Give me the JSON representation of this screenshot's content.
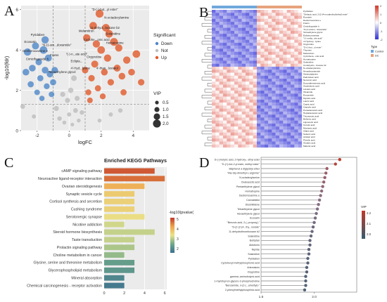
{
  "figure": {
    "panels": [
      {
        "letter": "A"
      },
      {
        "letter": "B"
      },
      {
        "letter": "C"
      },
      {
        "letter": "D"
      }
    ]
  },
  "colors": {
    "down": "#4f87c8",
    "not": "#bdbdbd",
    "up": "#e15a2b",
    "heat_high": "#d7301f",
    "heat_low": "#2b2bd6",
    "group_a": "#6fa8dc",
    "group_b": "#e6a37c",
    "lollipop_high": "#c0392b",
    "lollipop_low": "#355c6e"
  },
  "chart_data": [
    {
      "type": "scatter",
      "id": "volcano",
      "xlabel": "logFC",
      "ylabel": "-log10(fdr)",
      "xlim": [
        -3,
        5
      ],
      "ylim": [
        0,
        6.2
      ],
      "xticks": [
        -2,
        0,
        2,
        4
      ],
      "yticks": [
        0,
        2,
        4,
        6
      ],
      "grid": true,
      "threshold_lines": {
        "x": [
          -1,
          1
        ],
        "y": 1.3
      },
      "legend_significant": {
        "title": "Significant",
        "items": [
          "Down",
          "Not",
          "Up"
        ]
      },
      "legend_vip": {
        "title": "VIP",
        "items": [
          "0.5",
          "1.0",
          "1.5",
          "2.0"
        ]
      },
      "points": [
        {
          "x": -2.6,
          "y": 3.9,
          "vip": 1.8,
          "group": "Down"
        },
        {
          "x": -2.3,
          "y": 3.1,
          "vip": 1.6,
          "group": "Down"
        },
        {
          "x": -2.1,
          "y": 4.2,
          "vip": 1.7,
          "group": "Down"
        },
        {
          "x": -1.9,
          "y": 3.4,
          "vip": 1.5,
          "group": "Down"
        },
        {
          "x": -1.8,
          "y": 2.6,
          "vip": 1.4,
          "group": "Down"
        },
        {
          "x": -1.6,
          "y": 4.0,
          "vip": 1.9,
          "group": "Down"
        },
        {
          "x": -1.5,
          "y": 3.0,
          "vip": 1.6,
          "group": "Down"
        },
        {
          "x": -1.4,
          "y": 2.2,
          "vip": 1.3,
          "group": "Down"
        },
        {
          "x": -1.3,
          "y": 3.6,
          "vip": 1.7,
          "group": "Down"
        },
        {
          "x": -1.2,
          "y": 2.8,
          "vip": 1.5,
          "group": "Down"
        },
        {
          "x": -2.4,
          "y": 2.3,
          "vip": 1.4,
          "group": "Down"
        },
        {
          "x": -2.0,
          "y": 1.9,
          "vip": 1.2,
          "group": "Down"
        },
        {
          "x": -1.7,
          "y": 1.6,
          "vip": 1.1,
          "group": "Down"
        },
        {
          "x": -1.1,
          "y": 1.8,
          "vip": 1.2,
          "group": "Down"
        },
        {
          "x": -2.7,
          "y": 2.9,
          "vip": 1.6,
          "group": "Down"
        },
        {
          "x": -1.0,
          "y": 2.4,
          "vip": 1.4,
          "group": "Down"
        },
        {
          "x": -1.5,
          "y": 4.5,
          "vip": 1.8,
          "group": "Down"
        },
        {
          "x": -0.9,
          "y": 3.0,
          "vip": 1.5,
          "group": "Down"
        },
        {
          "x": -0.6,
          "y": 0.6,
          "vip": 0.8,
          "group": "Not"
        },
        {
          "x": -0.3,
          "y": 0.4,
          "vip": 0.6,
          "group": "Not"
        },
        {
          "x": 0.0,
          "y": 0.8,
          "vip": 0.7,
          "group": "Not"
        },
        {
          "x": 0.2,
          "y": 0.3,
          "vip": 0.5,
          "group": "Not"
        },
        {
          "x": 0.4,
          "y": 1.0,
          "vip": 0.9,
          "group": "Not"
        },
        {
          "x": -0.8,
          "y": 1.1,
          "vip": 1.0,
          "group": "Not"
        },
        {
          "x": 0.6,
          "y": 0.5,
          "vip": 0.6,
          "group": "Not"
        },
        {
          "x": -0.1,
          "y": 1.5,
          "vip": 1.0,
          "group": "Not"
        },
        {
          "x": 0.1,
          "y": 2.0,
          "vip": 1.1,
          "group": "Not"
        },
        {
          "x": -0.4,
          "y": 1.8,
          "vip": 1.0,
          "group": "Not"
        },
        {
          "x": 0.5,
          "y": 1.6,
          "vip": 1.0,
          "group": "Not"
        },
        {
          "x": 0.8,
          "y": 0.9,
          "vip": 0.8,
          "group": "Not"
        },
        {
          "x": -2.2,
          "y": 0.7,
          "vip": 0.7,
          "group": "Not"
        },
        {
          "x": 2.6,
          "y": 0.8,
          "vip": 0.7,
          "group": "Not"
        },
        {
          "x": 3.2,
          "y": 1.0,
          "vip": 0.8,
          "group": "Not"
        },
        {
          "x": 1.9,
          "y": 0.5,
          "vip": 0.6,
          "group": "Not"
        },
        {
          "x": -2.9,
          "y": 1.2,
          "vip": 0.9,
          "group": "Not"
        },
        {
          "x": 0.3,
          "y": 2.6,
          "vip": 1.2,
          "group": "Not"
        },
        {
          "x": 1.2,
          "y": 1.9,
          "vip": 1.3,
          "group": "Up"
        },
        {
          "x": 1.4,
          "y": 2.6,
          "vip": 1.5,
          "group": "Up"
        },
        {
          "x": 1.6,
          "y": 3.3,
          "vip": 1.7,
          "group": "Up"
        },
        {
          "x": 1.8,
          "y": 2.1,
          "vip": 1.4,
          "group": "Up"
        },
        {
          "x": 2.0,
          "y": 4.0,
          "vip": 1.9,
          "group": "Up"
        },
        {
          "x": 2.2,
          "y": 2.9,
          "vip": 1.6,
          "group": "Up"
        },
        {
          "x": 2.4,
          "y": 3.6,
          "vip": 1.8,
          "group": "Up"
        },
        {
          "x": 2.6,
          "y": 2.4,
          "vip": 1.5,
          "group": "Up"
        },
        {
          "x": 2.8,
          "y": 4.4,
          "vip": 2.0,
          "group": "Up"
        },
        {
          "x": 3.0,
          "y": 3.1,
          "vip": 1.7,
          "group": "Up"
        },
        {
          "x": 3.3,
          "y": 2.7,
          "vip": 1.6,
          "group": "Up"
        },
        {
          "x": 3.6,
          "y": 3.5,
          "vip": 1.8,
          "group": "Up"
        },
        {
          "x": 3.9,
          "y": 2.9,
          "vip": 1.6,
          "group": "Up"
        },
        {
          "x": 4.2,
          "y": 3.8,
          "vip": 1.9,
          "group": "Up"
        },
        {
          "x": 1.1,
          "y": 4.6,
          "vip": 1.8,
          "group": "Up"
        },
        {
          "x": 1.5,
          "y": 5.2,
          "vip": 1.9,
          "group": "Up"
        },
        {
          "x": 1.9,
          "y": 5.8,
          "vip": 2.0,
          "group": "Up"
        },
        {
          "x": 2.3,
          "y": 5.1,
          "vip": 1.9,
          "group": "Up"
        },
        {
          "x": 1.3,
          "y": 1.5,
          "vip": 1.2,
          "group": "Up"
        },
        {
          "x": 2.1,
          "y": 1.7,
          "vip": 1.3,
          "group": "Up"
        },
        {
          "x": 3.4,
          "y": 1.9,
          "vip": 1.4,
          "group": "Up"
        },
        {
          "x": 1.7,
          "y": 4.3,
          "vip": 1.8,
          "group": "Up"
        },
        {
          "x": 2.5,
          "y": 4.8,
          "vip": 1.9,
          "group": "Up"
        },
        {
          "x": 4.5,
          "y": 2.4,
          "vip": 1.5,
          "group": "Up"
        },
        {
          "x": 1.0,
          "y": 3.0,
          "vip": 1.5,
          "group": "Up"
        },
        {
          "x": 3.1,
          "y": 4.1,
          "vip": 1.8,
          "group": "Up"
        }
      ],
      "annotations": [
        {
          "text": "\"D-(-)-but...yl ester\"",
          "x": 1.4,
          "y": 5.95
        },
        {
          "text": "N-octadecylamine",
          "x": 2.2,
          "y": 5.55
        },
        {
          "text": "Melamitron",
          "x": 0.6,
          "y": 4.9
        },
        {
          "text": "11-dehyd...boxane b2",
          "x": 1.3,
          "y": 5.05
        },
        {
          "text": "Solanidine",
          "x": 2.3,
          "y": 4.75
        },
        {
          "text": "Cyclohe...onic acid",
          "x": 0.9,
          "y": 4.45
        },
        {
          "text": "Homatropine",
          "x": 2.3,
          "y": 4.3
        },
        {
          "text": "Pyridaben",
          "x": -2.4,
          "y": 4.7
        },
        {
          "text": "Ecosarin",
          "x": -2.8,
          "y": 4.35
        },
        {
          "text": "Desferrioxamine e",
          "x": -2.9,
          "y": 3.9
        },
        {
          "text": "\"N-(1-am...doxamide\"",
          "x": -1.7,
          "y": 4.2
        },
        {
          "text": "Frams",
          "x": -1.2,
          "y": 3.7
        },
        {
          "text": "Cimicifugoside h",
          "x": -2.7,
          "y": 3.5
        },
        {
          "text": "Tetraethylene glycol",
          "x": -1.3,
          "y": 2.85
        },
        {
          "text": "\"(-)-n...ate acid\"",
          "x": -0.2,
          "y": 3.75
        },
        {
          "text": "Eclipta...",
          "x": 0.1,
          "y": 3.4
        },
        {
          "text": "Oxyprotine",
          "x": 1.1,
          "y": 3.6
        },
        {
          "text": "4'-Hyd...lysine",
          "x": 0.1,
          "y": 3.05
        },
        {
          "text": "4'-than...lostatol",
          "x": 1.7,
          "y": 3.05
        }
      ]
    },
    {
      "type": "heatmap",
      "id": "heatmap",
      "color_scale": {
        "min": -2,
        "max": 2,
        "ticks": [
          "2",
          "1",
          "0",
          "-1",
          "-2"
        ]
      },
      "column_groups": [
        {
          "name": "",
          "count": 12
        },
        {
          "name": "",
          "count": 12
        }
      ],
      "legend_title": "Type",
      "legend_items": [
        "Control",
        "DC"
      ],
      "rows": [
        "Pyridaben",
        "\"Sebacic acid, 2-[2-(4-morpholinyl)ethyl] ester\"",
        "Ecosarin",
        "Desferrioxamine e",
        "Frams",
        "Cimicifugoside h",
        "\"N-(1-amino...doxamide\"",
        "Tetraethylene glycol",
        "Eclipta prostrata",
        "\"(-)-norlig...ate acid\"",
        "4'-Hydroxy...lysine",
        "Oxyprotine",
        "\"D-(-)-but...yl ester\"",
        "Thymine",
        "Melamitron",
        "Cyclohexa...onic acid",
        "Homatropine",
        "Solanidine",
        "11-dehydro...boxane b2",
        "N-octadecylamine",
        "Hexadecanamide",
        "Stearoylglycine",
        "Palmitoleic acid",
        "Nervonic acid",
        "Docosahexaenoic acid",
        "Arachidonic acid",
        "Linoleic acid",
        "Oleamide",
        "Erucamide",
        "Myristic acid",
        "Lauric acid",
        "Capric acid",
        "Caprylic acid",
        "Pentadecanoic acid",
        "Heptadecanoic acid",
        "Tricosanoic acid",
        "Behenic acid",
        "Lignoceric acid",
        "Cerotic acid",
        "Montanic acid",
        "Adipic acid",
        "Suberic acid",
        "Azelaic acid",
        "Pimelic acid",
        "Glutaric acid",
        "Malonic acid"
      ]
    },
    {
      "type": "bar",
      "id": "kegg",
      "title": "Enriched KEGG Pathways",
      "xlabel": "",
      "xlim": [
        0,
        6.2
      ],
      "xticks": [
        0,
        2,
        4,
        6
      ],
      "legend_title": "-log10(pvalue)",
      "legend_ticks": [
        "5",
        "4",
        "3",
        "2"
      ],
      "color_range": [
        1.5,
        5.5
      ],
      "categories": [
        "cAMP signaling pathway",
        "Neuroactive ligand-receptor interaction",
        "Ovarian steroidogenesis",
        "Synaptic vesicle cycle",
        "Cortisol synthesis and secretion",
        "Cushing syndrome",
        "Serotonergic synapse",
        "Nicotine addiction",
        "Steroid hormone biosynthesis",
        "Taste transduction",
        "Prolactin signaling pathway",
        "Choline metabolism in cancer",
        "Glycine, serine and threonine metabolism",
        "Glycerophospholipid metabolism",
        "Mineral absorption",
        "Chemical carcinogenesis - receptor activation"
      ],
      "values": [
        5,
        6,
        4,
        3,
        3,
        3,
        4,
        2,
        5,
        3,
        3,
        2,
        3,
        3,
        2,
        2
      ],
      "color_values": [
        5.2,
        5.0,
        4.3,
        3.9,
        3.8,
        3.8,
        3.6,
        3.3,
        3.2,
        3.2,
        3.0,
        2.8,
        2.3,
        2.2,
        1.9,
        1.7
      ]
    },
    {
      "type": "scatter",
      "id": "vip-lollipop",
      "xlim": [
        1.5,
        2.4
      ],
      "xticks": [
        1.5,
        2.0
      ],
      "legend_title": "VIP",
      "legend_ticks": [
        "2.2",
        "2.1",
        "2.0"
      ],
      "color_range": [
        1.85,
        2.25
      ],
      "categories": [
        "D-(-)-butyric acid, 2-hydroxy-, ethyl ester",
        "\"D-(+)-but-2-yl ester, methyl ester\"",
        "Bisphenol a diglycidyl ether",
        "\"Ala-Gly-dimethyl-L-arginine\"",
        "N-octadecylamine",
        "Oxaloacetic acid",
        "Pentaethylene glycol",
        "Homatropine",
        "Desferrioxamine e",
        "Cannabidiol",
        "Diosinilidene",
        "Tetraethylene glycol",
        "Hexaethylene glycol",
        "Ecosarin",
        "\"Benzoic acid, 2-(..propoxy)-\"",
        "\"D-(2-(2-(4-..thy...rosiate\"",
        "11-dehydrothromboxane b2",
        "Solanidine",
        "Butriptan",
        "Aldofunin",
        "Nipride",
        "Solanidine",
        "Pyridaben",
        "Cyclohexyl methylphosphonic acid",
        "Artemisinin",
        "Oxyprotine",
        "gamma.-aminobutyric acid",
        "1-myristoyl-sn-glycero-3-phosphocholine",
        "\"Benzamide, n-(2-(...amethyl)-\"",
        "2-phenylmethylphosphinic acid"
      ],
      "values": [
        2.24,
        2.2,
        2.12,
        2.11,
        2.1,
        2.09,
        2.08,
        2.07,
        2.06,
        2.05,
        2.04,
        2.03,
        2.02,
        2.01,
        2.0,
        1.99,
        1.98,
        1.97,
        1.96,
        1.96,
        1.95,
        1.95,
        1.94,
        1.94,
        1.93,
        1.93,
        1.92,
        1.92,
        1.92,
        1.91
      ]
    }
  ]
}
